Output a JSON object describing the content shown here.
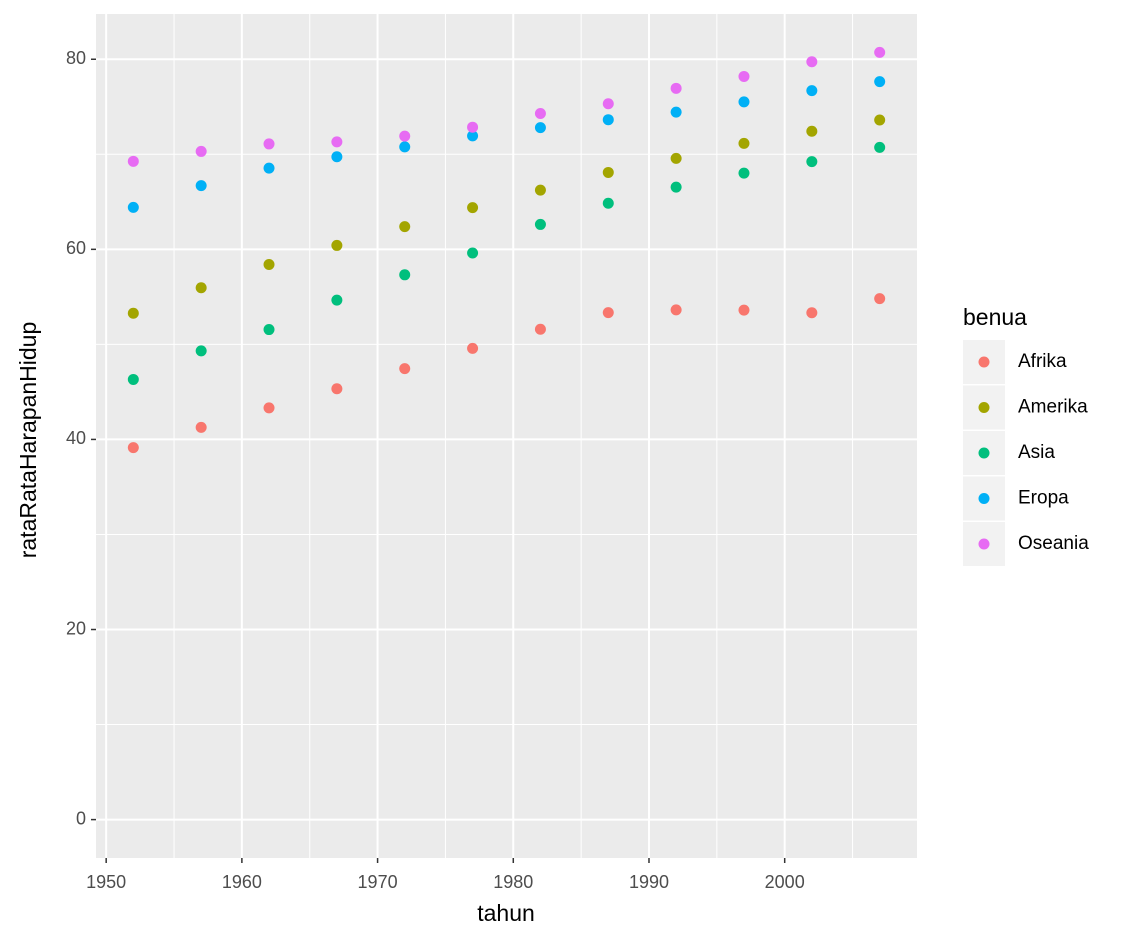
{
  "chart_data": {
    "type": "scatter",
    "x_label": "tahun",
    "y_label": "rataRataHarapanHidup",
    "legend_title": "benua",
    "x": [
      1952,
      1957,
      1962,
      1967,
      1972,
      1977,
      1982,
      1987,
      1992,
      1997,
      2002,
      2007
    ],
    "series": [
      {
        "name": "Afrika",
        "color": "#F8766D",
        "values": [
          39.14,
          41.27,
          43.32,
          45.33,
          47.45,
          49.58,
          51.59,
          53.34,
          53.63,
          53.6,
          53.33,
          54.81
        ]
      },
      {
        "name": "Amerika",
        "color": "#A3A500",
        "values": [
          53.28,
          55.96,
          58.4,
          60.41,
          62.39,
          64.39,
          66.23,
          68.09,
          69.57,
          71.15,
          72.42,
          73.61
        ]
      },
      {
        "name": "Asia",
        "color": "#00BF7D",
        "values": [
          46.31,
          49.32,
          51.56,
          54.66,
          57.32,
          59.61,
          62.62,
          64.85,
          66.54,
          68.02,
          69.23,
          70.73
        ]
      },
      {
        "name": "Eropa",
        "color": "#00B0F6",
        "values": [
          64.41,
          66.7,
          68.54,
          69.74,
          70.78,
          71.94,
          72.81,
          73.64,
          74.44,
          75.51,
          76.7,
          77.65
        ]
      },
      {
        "name": "Oseania",
        "color": "#E76BF3",
        "values": [
          69.26,
          70.3,
          71.09,
          71.31,
          71.91,
          72.85,
          74.29,
          75.32,
          76.94,
          78.19,
          79.74,
          80.72
        ]
      }
    ],
    "xlim": [
      1949.25,
      2009.75
    ],
    "xticks": [
      1950,
      1960,
      1970,
      1980,
      1990,
      2000
    ],
    "ylim": [
      -4.04,
      84.76
    ],
    "yticks": [
      0,
      20,
      40,
      60,
      80
    ],
    "grid": true,
    "minor_grid": true,
    "legend_position": "right"
  }
}
